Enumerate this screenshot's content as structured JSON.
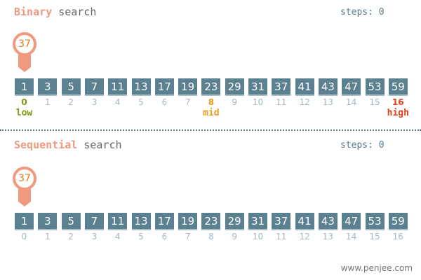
{
  "binary": {
    "keyword": "Binary",
    "title_rest": " search",
    "steps_label": "steps: 0",
    "target": "37",
    "pointers": [
      {
        "index": 0,
        "label": "low",
        "color": "#7a9a10"
      },
      {
        "index": 8,
        "label": "mid",
        "color": "#e89a1e"
      },
      {
        "index": 16,
        "label": "high",
        "color": "#e0401a"
      }
    ]
  },
  "sequential": {
    "keyword": "Sequential",
    "title_rest": " search",
    "steps_label": "steps: 0",
    "target": "37"
  },
  "array": [
    1,
    3,
    5,
    7,
    11,
    13,
    17,
    19,
    23,
    29,
    31,
    37,
    41,
    43,
    47,
    53,
    59
  ],
  "colors": {
    "box": "#5b8190",
    "pin": "#ef9a80",
    "index": "#a3b8c2"
  },
  "footer": "www.penjee.com"
}
